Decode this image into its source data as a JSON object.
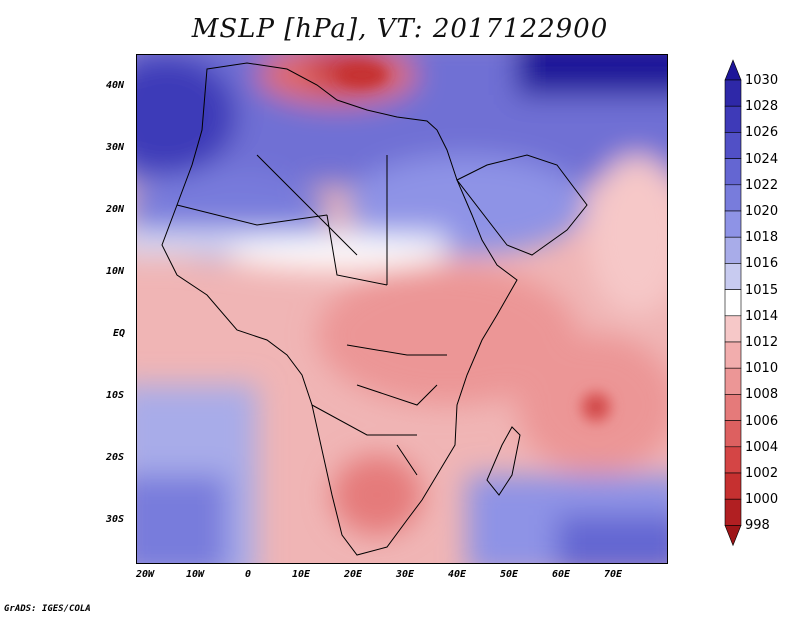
{
  "title": "MSLP [hPa], VT: 2017122900",
  "credit": "GrADS: IGES/COLA",
  "axes": {
    "x_ticks": [
      "20W",
      "10W",
      "0",
      "10E",
      "20E",
      "30E",
      "40E",
      "50E",
      "60E",
      "70E"
    ],
    "y_ticks": [
      "40N",
      "30N",
      "20N",
      "10N",
      "EQ",
      "10S",
      "20S",
      "30S"
    ]
  },
  "colorbar": {
    "levels": [
      "1030",
      "1028",
      "1026",
      "1024",
      "1022",
      "1020",
      "1018",
      "1016",
      "1015",
      "1014",
      "1012",
      "1010",
      "1008",
      "1006",
      "1004",
      "1002",
      "1000",
      "998"
    ],
    "colors": [
      "#1e1699",
      "#2e28a8",
      "#3e3ab8",
      "#5150c6",
      "#6466d2",
      "#787cdc",
      "#8e93e6",
      "#a8ace9",
      "#c8cbf0",
      "#ffffff",
      "#f6c8c8",
      "#f2adad",
      "#ec9696",
      "#e57a7a",
      "#dd6060",
      "#d44545",
      "#c63030",
      "#b11f22",
      "#9e1518"
    ]
  }
}
